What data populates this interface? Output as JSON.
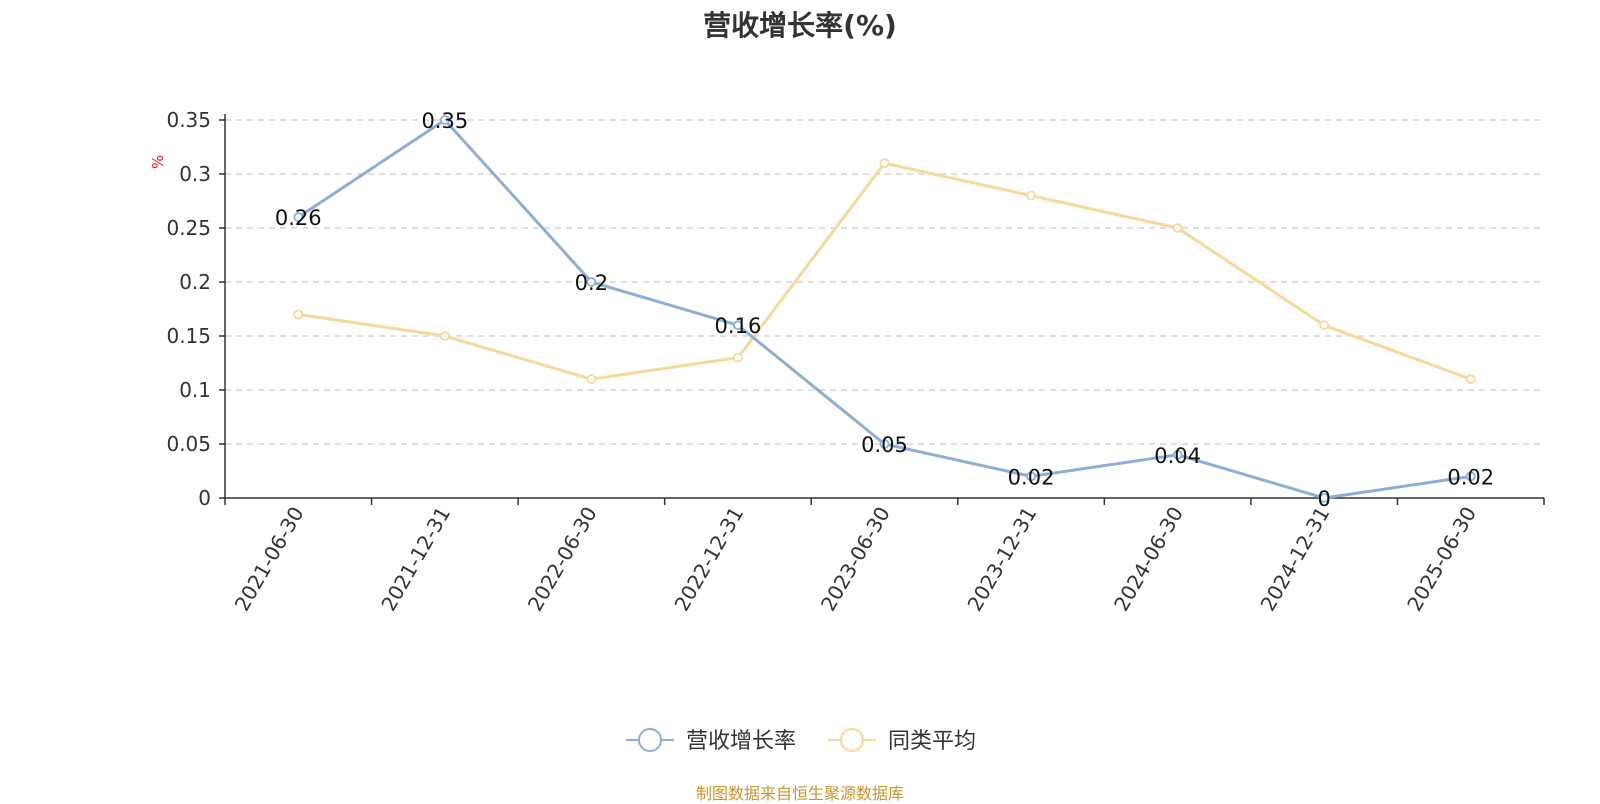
{
  "chart_data": {
    "type": "line",
    "title": "营收增长率(%)",
    "ylabel": "%",
    "xlabel": "",
    "categories": [
      "2021-06-30",
      "2021-12-31",
      "2022-06-30",
      "2022-12-31",
      "2023-06-30",
      "2023-12-31",
      "2024-06-30",
      "2024-12-31",
      "2025-06-30"
    ],
    "ylim": [
      0,
      0.35
    ],
    "yticks": [
      "0",
      "0.05",
      "0.1",
      "0.15",
      "0.2",
      "0.25",
      "0.3",
      "0.35"
    ],
    "grid": true,
    "legend_position": "bottom-center",
    "series": [
      {
        "name": "营收增长率",
        "color": "#8eaed8",
        "values": [
          0.26,
          0.35,
          0.2,
          0.16,
          0.05,
          0.02,
          0.04,
          0,
          0.02
        ],
        "labels": [
          "0.26",
          "0.35",
          "0.2",
          "0.16",
          "0.05",
          "0.02",
          "0.04",
          "0",
          "0.02"
        ],
        "show_labels": true
      },
      {
        "name": "同类平均",
        "color": "#f8d898",
        "values": [
          0.17,
          0.15,
          0.11,
          0.13,
          0.31,
          0.28,
          0.25,
          0.16,
          0.11
        ],
        "show_labels": false
      }
    ],
    "unit_color": "#e02020",
    "source": "制图数据来自恒生聚源数据库",
    "source_color": "#c8962c"
  }
}
